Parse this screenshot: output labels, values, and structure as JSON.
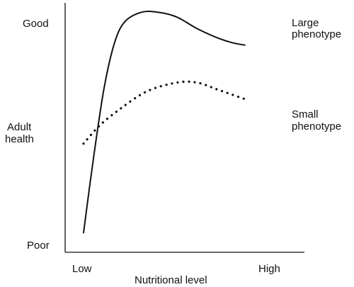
{
  "chart_data": {
    "type": "line",
    "title": "",
    "xlabel": "Nutritional level",
    "ylabel": "Adult health",
    "ylabel_lines": [
      "Adult",
      "health"
    ],
    "x_tick_labels": {
      "low": "Low",
      "high": "High"
    },
    "y_tick_labels": {
      "low": "Poor",
      "high": "Good"
    },
    "xlim": [
      0,
      1
    ],
    "ylim": [
      0,
      1
    ],
    "x_axis_numbered": false,
    "y_axis_numbered": false,
    "grid": false,
    "legend": "none (curves labelled directly at right end)",
    "series": [
      {
        "name": "Large phenotype",
        "label_lines": [
          "Large",
          "phenotype"
        ],
        "line_style": "solid",
        "color": "#111111",
        "points": [
          [
            0.0,
            0.05
          ],
          [
            0.05,
            0.38
          ],
          [
            0.1,
            0.67
          ],
          [
            0.15,
            0.86
          ],
          [
            0.2,
            0.95
          ],
          [
            0.28,
            0.99
          ],
          [
            0.36,
            0.99
          ],
          [
            0.45,
            0.97
          ],
          [
            0.55,
            0.92
          ],
          [
            0.65,
            0.88
          ],
          [
            0.72,
            0.86
          ],
          [
            0.78,
            0.85
          ]
        ]
      },
      {
        "name": "Small phenotype",
        "label_lines": [
          "Small",
          "phenotype"
        ],
        "line_style": "dotted",
        "color": "#111111",
        "points": [
          [
            0.0,
            0.43
          ],
          [
            0.07,
            0.5
          ],
          [
            0.15,
            0.56
          ],
          [
            0.3,
            0.65
          ],
          [
            0.45,
            0.69
          ],
          [
            0.55,
            0.69
          ],
          [
            0.65,
            0.66
          ],
          [
            0.78,
            0.62
          ]
        ]
      }
    ]
  }
}
